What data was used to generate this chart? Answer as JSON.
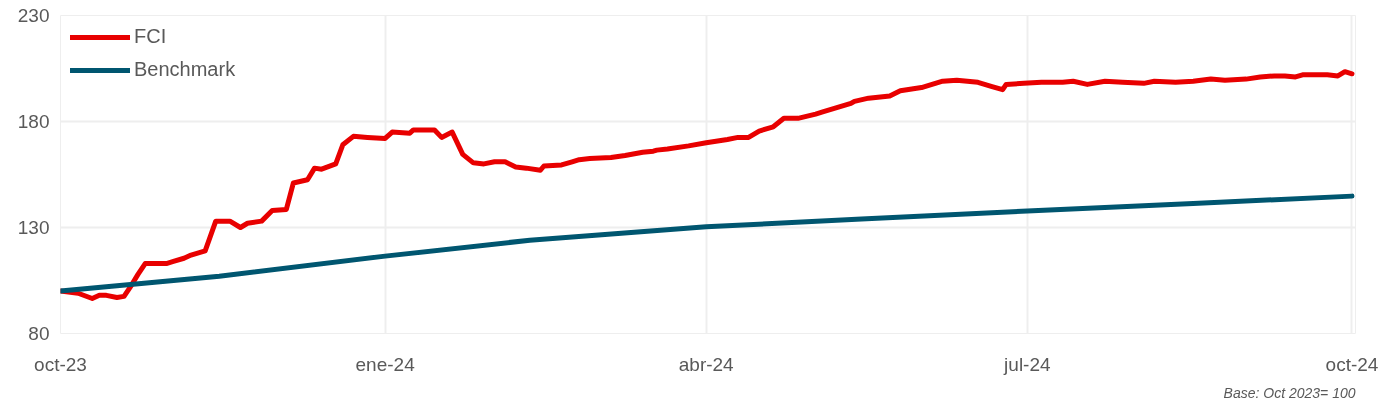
{
  "chart_data": {
    "type": "line",
    "xlim": [
      "2023-10-01",
      "2024-10-02"
    ],
    "xticks": [
      {
        "value": "2023-10-01",
        "label": "oct-23"
      },
      {
        "value": "2024-01-01",
        "label": "ene-24"
      },
      {
        "value": "2024-04-01",
        "label": "abr-24"
      },
      {
        "value": "2024-07-01",
        "label": "jul-24"
      },
      {
        "value": "2024-10-01",
        "label": "oct-24"
      }
    ],
    "ylim": [
      80,
      230
    ],
    "yticks": [
      80,
      130,
      180,
      230
    ],
    "grid": true,
    "legend": "top left",
    "marker": "none",
    "line_style": "solid",
    "annotations": [
      "Base: Oct 2023= 100"
    ],
    "series": [
      {
        "name": "FCI",
        "color": "#e80000",
        "x": [
          "2023-10-01",
          "2023-10-06",
          "2023-10-10",
          "2023-10-12",
          "2023-10-14",
          "2023-10-17",
          "2023-10-19",
          "2023-10-21",
          "2023-10-23",
          "2023-10-25",
          "2023-10-28",
          "2023-10-31",
          "2023-11-02",
          "2023-11-05",
          "2023-11-07",
          "2023-11-11",
          "2023-11-14",
          "2023-11-18",
          "2023-11-21",
          "2023-11-23",
          "2023-11-27",
          "2023-11-30",
          "2023-12-04",
          "2023-12-06",
          "2023-12-10",
          "2023-12-12",
          "2023-12-14",
          "2023-12-18",
          "2023-12-20",
          "2023-12-23",
          "2023-12-27",
          "2024-01-01",
          "2024-01-03",
          "2024-01-08",
          "2024-01-09",
          "2024-01-15",
          "2024-01-17",
          "2024-01-20",
          "2024-01-23",
          "2024-01-26",
          "2024-01-29",
          "2024-02-01",
          "2024-02-04",
          "2024-02-07",
          "2024-02-10",
          "2024-02-14",
          "2024-02-15",
          "2024-02-20",
          "2024-02-23",
          "2024-02-25",
          "2024-02-28",
          "2024-03-05",
          "2024-03-09",
          "2024-03-14",
          "2024-03-17",
          "2024-03-18",
          "2024-03-21",
          "2024-03-27",
          "2024-04-01",
          "2024-04-07",
          "2024-04-10",
          "2024-04-13",
          "2024-04-16",
          "2024-04-20",
          "2024-04-23",
          "2024-04-27",
          "2024-05-02",
          "2024-05-04",
          "2024-05-08",
          "2024-05-12",
          "2024-05-13",
          "2024-05-17",
          "2024-05-23",
          "2024-05-26",
          "2024-06-01",
          "2024-06-07",
          "2024-06-11",
          "2024-06-17",
          "2024-06-21",
          "2024-06-24",
          "2024-06-25",
          "2024-06-30",
          "2024-07-05",
          "2024-07-11",
          "2024-07-14",
          "2024-07-18",
          "2024-07-23",
          "2024-07-28",
          "2024-08-03",
          "2024-08-06",
          "2024-08-12",
          "2024-08-17",
          "2024-08-22",
          "2024-08-26",
          "2024-09-01",
          "2024-09-05",
          "2024-09-09",
          "2024-09-12",
          "2024-09-15",
          "2024-09-17",
          "2024-09-24",
          "2024-09-27",
          "2024-09-29",
          "2024-10-01"
        ],
        "values": [
          100,
          99,
          96.5,
          98,
          98,
          97,
          97.5,
          102.5,
          108,
          113,
          113,
          113,
          114,
          115.5,
          117,
          119,
          133,
          133,
          130,
          132,
          133,
          138,
          138.5,
          151,
          152.5,
          158,
          157.5,
          160,
          169,
          173,
          172.5,
          172,
          175,
          174.5,
          176,
          176,
          172.5,
          175,
          164.5,
          160.5,
          160,
          161,
          161,
          158.5,
          158,
          157,
          159,
          159.5,
          161,
          162,
          162.5,
          163,
          164,
          165.5,
          166,
          166.5,
          167,
          168.5,
          170,
          171.5,
          172.5,
          172.5,
          175.5,
          177.5,
          181.5,
          181.5,
          183.5,
          184.5,
          186.5,
          188.5,
          189.5,
          191,
          192,
          194.5,
          196,
          199,
          199.5,
          198.5,
          196.5,
          195,
          197.5,
          198,
          198.5,
          198.5,
          199,
          197.5,
          199,
          198.5,
          198,
          199,
          198.5,
          199,
          200,
          199.5,
          200,
          201,
          201.5,
          201.5,
          201,
          202,
          202,
          201.5,
          203.5,
          202.5
        ]
      },
      {
        "name": "Benchmark",
        "color": "#005670",
        "x": [
          "2023-10-01",
          "2023-11-15",
          "2024-01-01",
          "2024-02-11",
          "2024-04-01",
          "2024-05-15",
          "2024-07-01",
          "2024-08-17",
          "2024-10-01"
        ],
        "values": [
          100,
          107,
          116.5,
          124,
          130.3,
          134,
          137.8,
          141.3,
          144.8
        ]
      }
    ]
  }
}
